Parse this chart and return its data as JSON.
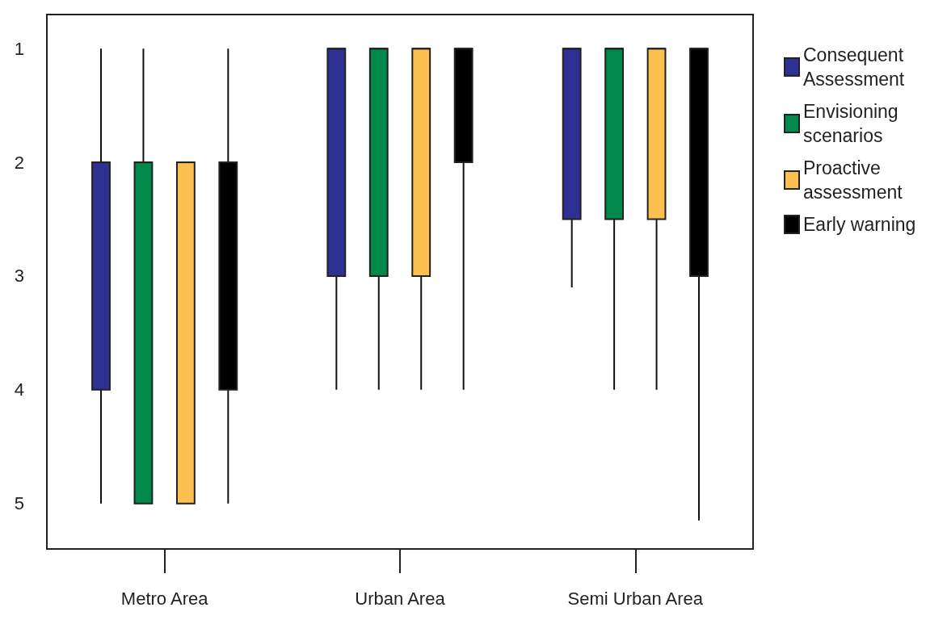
{
  "chart_data": {
    "type": "box",
    "categories": [
      "Metro Area",
      "Urban Area",
      "Semi Urban Area"
    ],
    "series": [
      {
        "name": "Consequent Assessment",
        "color": "#2e3192",
        "boxes": [
          {
            "low": 1,
            "q1": 2,
            "median": 2,
            "q3": 4,
            "high": 5
          },
          {
            "low": 1,
            "q1": 1,
            "median": 1,
            "q3": 3,
            "high": 4
          },
          {
            "low": 1,
            "q1": 1,
            "median": 1,
            "q3": 2.5,
            "high": 3.1
          }
        ]
      },
      {
        "name": "Envisioning scenarios",
        "color": "#00894a",
        "boxes": [
          {
            "low": 1,
            "q1": 2,
            "median": 2,
            "q3": 5,
            "high": 5
          },
          {
            "low": 1,
            "q1": 1,
            "median": 1,
            "q3": 3,
            "high": 4
          },
          {
            "low": 1,
            "q1": 1,
            "median": 1,
            "q3": 2.5,
            "high": 4
          }
        ]
      },
      {
        "name": "Proactive assessment",
        "color": "#fbc04f",
        "boxes": [
          {
            "low": 2,
            "q1": 2,
            "median": 2,
            "q3": 5,
            "high": 5
          },
          {
            "low": 1,
            "q1": 1,
            "median": 1,
            "q3": 3,
            "high": 4
          },
          {
            "low": 1,
            "q1": 1,
            "median": 1,
            "q3": 2.5,
            "high": 4
          }
        ]
      },
      {
        "name": "Early warning",
        "color": "#000000",
        "boxes": [
          {
            "low": 1,
            "q1": 2,
            "median": 2,
            "q3": 4,
            "high": 5
          },
          {
            "low": 1,
            "q1": 1,
            "median": 1,
            "q3": 2,
            "high": 4
          },
          {
            "low": 1,
            "q1": 1,
            "median": 1,
            "q3": 3,
            "high": 5.15
          }
        ]
      }
    ],
    "ylim": [
      5.4,
      0.7
    ],
    "yticks": [
      1,
      2,
      3,
      4,
      5
    ],
    "grid": false,
    "legend": "top right"
  }
}
